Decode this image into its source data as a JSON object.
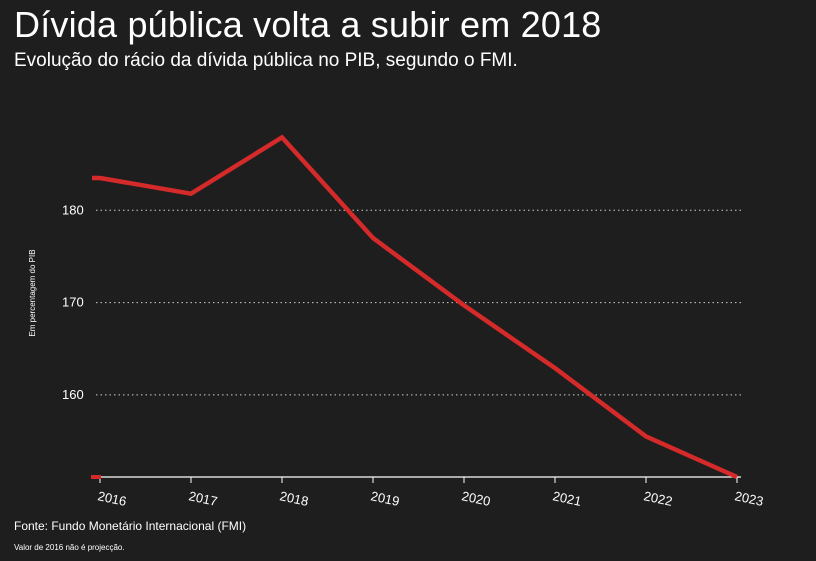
{
  "title": "Dívida pública volta a subir em 2018",
  "subtitle": "Evolução do rácio da dívida pública no PIB, segundo o FMI.",
  "source": "Fonte: Fundo Monetário Internacional (FMI)",
  "note": "Valor de 2016 não é projecção.",
  "colors": {
    "background": "#1e1e1e",
    "line": "#d42a2a",
    "text": "#ffffff",
    "grid": "#cfcfcf"
  },
  "chart_data": {
    "type": "line",
    "title": "Dívida pública volta a subir em 2018",
    "subtitle": "Evolução do rácio da dívida pública no PIB, segundo o FMI.",
    "xlabel": "",
    "ylabel": "Em percentagem do PIB",
    "x": [
      "2016",
      "2017",
      "2018",
      "2019",
      "2020",
      "2021",
      "2022",
      "2023"
    ],
    "series": [
      {
        "values": [
          183.5,
          181.8,
          187.9,
          177.0,
          169.7,
          162.9,
          155.5,
          151.1
        ]
      }
    ],
    "yticks": [
      160,
      170,
      180
    ],
    "ylim": [
      151.1,
      190
    ],
    "grid": true,
    "legend": "none"
  }
}
